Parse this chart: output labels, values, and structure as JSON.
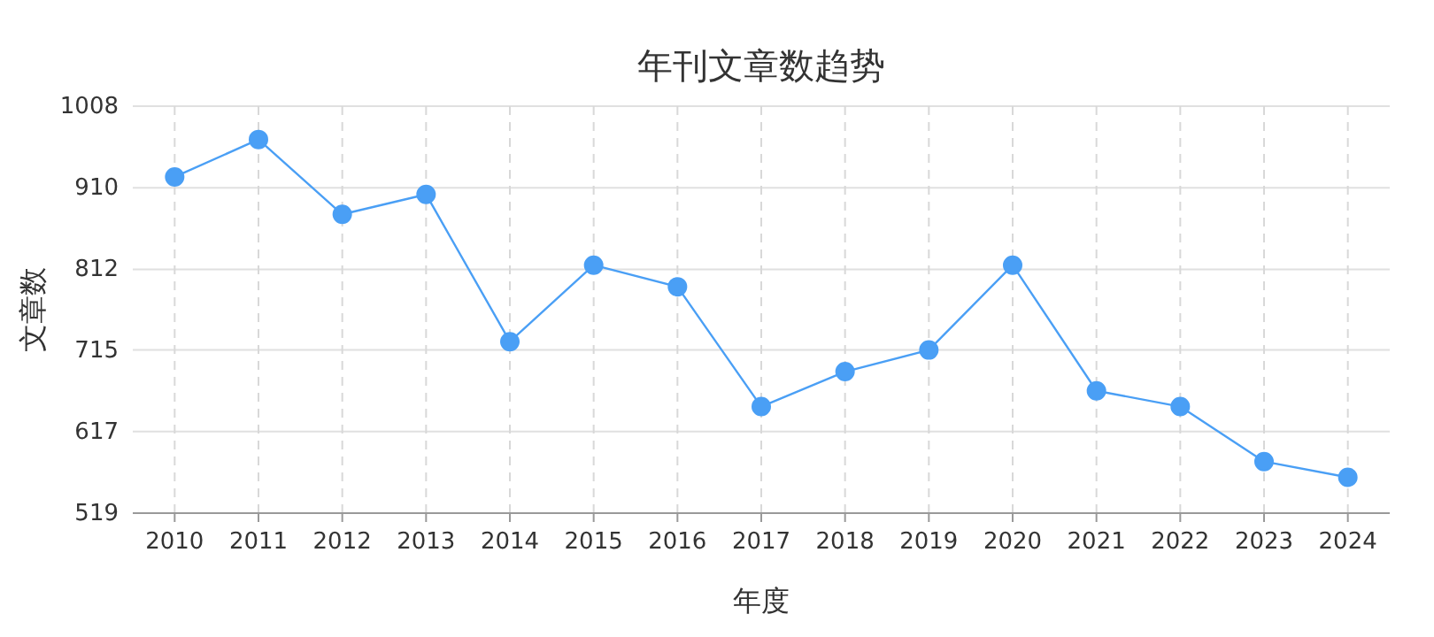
{
  "chart_data": {
    "type": "line",
    "title": "年刊文章数趋势",
    "xlabel": "年度",
    "ylabel": "文章数",
    "categories": [
      "2010",
      "2011",
      "2012",
      "2013",
      "2014",
      "2015",
      "2016",
      "2017",
      "2018",
      "2019",
      "2020",
      "2021",
      "2022",
      "2023",
      "2024"
    ],
    "values": [
      923,
      968,
      878,
      902,
      725,
      817,
      791,
      647,
      689,
      715,
      817,
      666,
      647,
      581,
      562
    ],
    "color": "#4a9ff5",
    "ylim": [
      519,
      1008
    ],
    "yticks": [
      519,
      617,
      715,
      812,
      910,
      1008
    ],
    "grid": true,
    "marker": "circle"
  }
}
